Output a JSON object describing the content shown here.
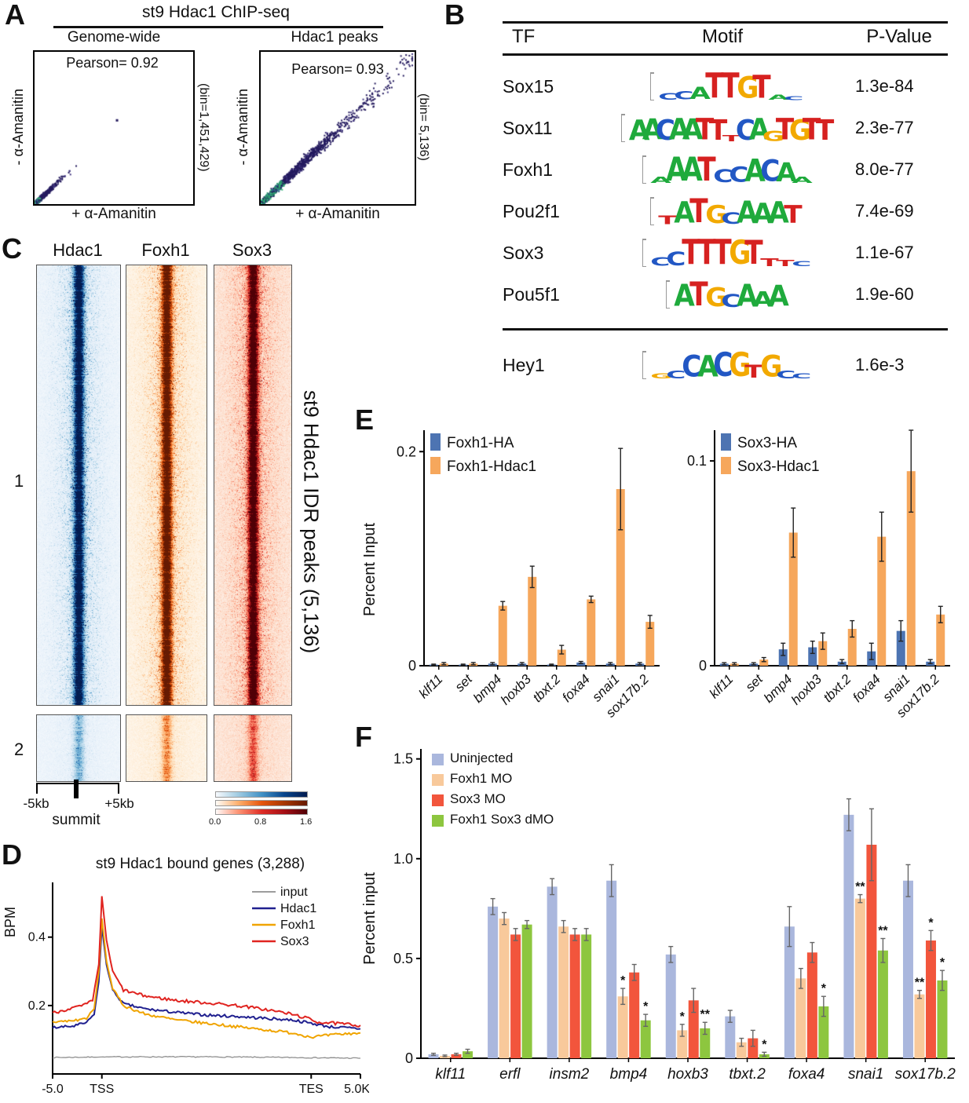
{
  "panelA": {
    "letter": "A",
    "title": "st9 Hdac1 ChIP-seq",
    "plots": [
      {
        "subtitle": "Genome-wide",
        "pearson": "Pearson= 0.92",
        "xlabel": "+ α-Amanitin",
        "ylabel": "- α-Amanitin",
        "bin_label": "(bin=1,451,429)"
      },
      {
        "subtitle": "Hdac1 peaks",
        "pearson": "Pearson= 0.93",
        "xlabel": "+ α-Amanitin",
        "ylabel": "- α-Amanitin",
        "bin_label": "(bin= 5,136)"
      }
    ]
  },
  "panelB": {
    "letter": "B",
    "headers": [
      "TF",
      "Motif",
      "P-Value"
    ],
    "logo_colors": {
      "A": "#1faa3c",
      "C": "#2257c4",
      "G": "#f2a900",
      "T": "#d62120"
    },
    "rows": [
      {
        "tf": "Sox15",
        "pvalue": "1.3e-84",
        "logo": [
          [
            "C",
            0.26
          ],
          [
            "C",
            0.32
          ],
          [
            "A",
            0.48
          ],
          [
            "T",
            1.0
          ],
          [
            "T",
            1.0
          ],
          [
            "G",
            0.85
          ],
          [
            "T",
            0.92
          ],
          [
            "A",
            0.2
          ],
          [
            "C",
            0.15
          ]
        ]
      },
      {
        "tf": "Sox11",
        "pvalue": "2.3e-77",
        "logo": [
          [
            "A",
            0.8
          ],
          [
            "A",
            0.82
          ],
          [
            "C",
            0.8
          ],
          [
            "A",
            0.85
          ],
          [
            "A",
            0.82
          ],
          [
            "T",
            0.85
          ],
          [
            "T",
            0.8
          ],
          [
            "T",
            0.25
          ],
          [
            "C",
            0.8
          ],
          [
            "A",
            0.85
          ],
          [
            "G",
            0.4
          ],
          [
            "T",
            0.85
          ],
          [
            "G",
            0.8
          ],
          [
            "T",
            0.85
          ],
          [
            "T",
            0.8
          ]
        ]
      },
      {
        "tf": "Foxh1",
        "pvalue": "8.0e-77",
        "logo": [
          [
            "A",
            0.25
          ],
          [
            "A",
            0.95
          ],
          [
            "A",
            0.95
          ],
          [
            "T",
            0.95
          ],
          [
            "C",
            0.5
          ],
          [
            "C",
            0.6
          ],
          [
            "A",
            0.9
          ],
          [
            "C",
            0.85
          ],
          [
            "A",
            0.75
          ],
          [
            "A",
            0.25
          ]
        ]
      },
      {
        "tf": "Pou2f1",
        "pvalue": "7.4e-69",
        "logo": [
          [
            "T",
            0.35
          ],
          [
            "A",
            0.85
          ],
          [
            "T",
            0.95
          ],
          [
            "G",
            0.7
          ],
          [
            "C",
            0.45
          ],
          [
            "A",
            0.88
          ],
          [
            "A",
            0.8
          ],
          [
            "A",
            0.85
          ],
          [
            "T",
            0.7
          ]
        ]
      },
      {
        "tf": "Sox3",
        "pvalue": "1.1e-67",
        "logo": [
          [
            "C",
            0.35
          ],
          [
            "C",
            0.55
          ],
          [
            "T",
            1.0
          ],
          [
            "T",
            1.0
          ],
          [
            "T",
            1.0
          ],
          [
            "G",
            0.95
          ],
          [
            "T",
            0.95
          ],
          [
            "T",
            0.3
          ],
          [
            "T",
            0.25
          ],
          [
            "C",
            0.2
          ]
        ]
      },
      {
        "tf": "Pou5f1",
        "pvalue": "1.9e-60",
        "logo": [
          [
            "A",
            0.88
          ],
          [
            "T",
            0.95
          ],
          [
            "G",
            0.75
          ],
          [
            "C",
            0.5
          ],
          [
            "A",
            0.88
          ],
          [
            "A",
            0.6
          ],
          [
            "A",
            0.82
          ]
        ]
      },
      {
        "tf": "Hey1",
        "pvalue": "1.6e-3",
        "below_separator": true,
        "logo": [
          [
            "G",
            0.2
          ],
          [
            "C",
            0.3
          ],
          [
            "C",
            0.85
          ],
          [
            "A",
            0.85
          ],
          [
            "C",
            0.95
          ],
          [
            "G",
            0.95
          ],
          [
            "T",
            0.5
          ],
          [
            "G",
            0.85
          ],
          [
            "C",
            0.3
          ],
          [
            "C",
            0.2
          ]
        ]
      }
    ]
  },
  "panelC": {
    "letter": "C",
    "column_titles": [
      "Hdac1",
      "Foxh1",
      "Sox3"
    ],
    "cluster_labels": [
      "1",
      "2"
    ],
    "x_ticks": {
      "left": "-5kb",
      "center": "summit",
      "right": "+5kb"
    },
    "side_label": "st9 Hdac1 IDR peaks  (5,136)",
    "colorbar_ticks": [
      "0.0",
      "0.8",
      "1.6"
    ]
  },
  "panelD": {
    "letter": "D",
    "title": "st9 Hdac1 bound genes (3,288)",
    "ylabel": "BPM"
  },
  "panelE": {
    "letter": "E",
    "ylabel": "Percent Input"
  },
  "panelF": {
    "letter": "F",
    "ylabel": "Percent input"
  },
  "chart_data": [
    {
      "id": "A_left",
      "type": "scatter",
      "title": "Genome-wide",
      "pearson": 0.92,
      "bins": 1451429,
      "xlabel": "+ α-Amanitin",
      "ylabel": "- α-Amanitin",
      "xlim": [
        0,
        1
      ],
      "ylim": [
        0,
        1
      ],
      "description": "dense cluster of binned coverage points hugging the diagonal near the origin, one isolated mid-range point",
      "render": {
        "seed": 11,
        "n": 1050,
        "scale": 0.034,
        "max": 0.3,
        "spread": 0.05,
        "coreCut": 0.028,
        "outlier": [
          0.52,
          0.55
        ]
      }
    },
    {
      "id": "A_right",
      "type": "scatter",
      "title": "Hdac1 peaks",
      "pearson": 0.93,
      "bins": 5136,
      "xlabel": "+ α-Amanitin",
      "ylabel": "- α-Amanitin",
      "xlim": [
        0,
        1
      ],
      "ylim": [
        0,
        1
      ],
      "description": "diagonal scatter cloud spanning the full range, density-colored (green core, dark navy outliers)",
      "render": {
        "seed": 23,
        "n": 1700,
        "scale": 0.2,
        "max": 0.96,
        "spread": 0.07,
        "coreCut": 0.13
      }
    },
    {
      "id": "C_heat",
      "type": "heatmap",
      "columns": [
        {
          "name": "Hdac1",
          "palette": "blue",
          "base": 0.04,
          "speck": 0.1
        },
        {
          "name": "Foxh1",
          "palette": "orange",
          "base": 0.04,
          "speck": 0.12
        },
        {
          "name": "Sox3",
          "palette": "red",
          "base": 0.08,
          "speck": 0.16
        }
      ],
      "clusters": [
        {
          "label": "1",
          "strength": 1.0
        },
        {
          "label": "2",
          "strength": 0.42
        }
      ],
      "x_range": [
        "-5kb",
        "summit",
        "+5kb"
      ],
      "colorbar": [
        0.0,
        0.8,
        1.6
      ],
      "side_label": "st9 Hdac1 IDR peaks  (5,136)"
    },
    {
      "id": "D_meta",
      "type": "line",
      "title": "st9 Hdac1 bound genes (3,288)",
      "ylabel": "BPM",
      "ylim": [
        0,
        0.56
      ],
      "yticks": [
        {
          "v": 0.2,
          "label": "0.2"
        },
        {
          "v": 0.4,
          "label": "0.4"
        }
      ],
      "xticks": [
        {
          "pos": 0,
          "label": "-5.0"
        },
        {
          "pos": 0.16,
          "label": "TSS"
        },
        {
          "pos": 0.84,
          "label": "TES"
        },
        {
          "pos": 1,
          "label": "5.0Kb"
        }
      ],
      "series": [
        {
          "name": "input",
          "color": "#8f8f8f",
          "width": 1.3,
          "noise": 0.003,
          "points": [
            [
              0,
              0.048
            ],
            [
              0.2,
              0.05
            ],
            [
              0.5,
              0.05
            ],
            [
              0.8,
              0.048
            ],
            [
              1,
              0.046
            ]
          ]
        },
        {
          "name": "Hdac1",
          "color": "#20208f",
          "width": 2,
          "noise": 0.008,
          "points": [
            [
              0,
              0.135
            ],
            [
              0.07,
              0.14
            ],
            [
              0.11,
              0.15
            ],
            [
              0.135,
              0.175
            ],
            [
              0.15,
              0.27
            ],
            [
              0.16,
              0.43
            ],
            [
              0.175,
              0.32
            ],
            [
              0.195,
              0.245
            ],
            [
              0.23,
              0.205
            ],
            [
              0.3,
              0.19
            ],
            [
              0.4,
              0.18
            ],
            [
              0.5,
              0.172
            ],
            [
              0.6,
              0.168
            ],
            [
              0.7,
              0.162
            ],
            [
              0.78,
              0.158
            ],
            [
              0.84,
              0.148
            ],
            [
              0.9,
              0.138
            ],
            [
              1,
              0.132
            ]
          ]
        },
        {
          "name": "Foxh1",
          "color": "#f0a400",
          "width": 2,
          "noise": 0.008,
          "points": [
            [
              0,
              0.152
            ],
            [
              0.07,
              0.156
            ],
            [
              0.11,
              0.163
            ],
            [
              0.135,
              0.19
            ],
            [
              0.15,
              0.3
            ],
            [
              0.16,
              0.455
            ],
            [
              0.175,
              0.33
            ],
            [
              0.195,
              0.25
            ],
            [
              0.23,
              0.2
            ],
            [
              0.3,
              0.175
            ],
            [
              0.4,
              0.158
            ],
            [
              0.5,
              0.148
            ],
            [
              0.6,
              0.138
            ],
            [
              0.7,
              0.128
            ],
            [
              0.78,
              0.12
            ],
            [
              0.84,
              0.108
            ],
            [
              0.92,
              0.115
            ],
            [
              1,
              0.12
            ]
          ]
        },
        {
          "name": "Sox3",
          "color": "#e02420",
          "width": 2,
          "noise": 0.009,
          "points": [
            [
              0,
              0.178
            ],
            [
              0.05,
              0.19
            ],
            [
              0.1,
              0.2
            ],
            [
              0.13,
              0.215
            ],
            [
              0.15,
              0.32
            ],
            [
              0.16,
              0.52
            ],
            [
              0.175,
              0.39
            ],
            [
              0.195,
              0.3
            ],
            [
              0.23,
              0.245
            ],
            [
              0.3,
              0.228
            ],
            [
              0.4,
              0.215
            ],
            [
              0.5,
              0.208
            ],
            [
              0.6,
              0.2
            ],
            [
              0.68,
              0.19
            ],
            [
              0.76,
              0.178
            ],
            [
              0.82,
              0.165
            ],
            [
              0.86,
              0.152
            ],
            [
              0.93,
              0.147
            ],
            [
              1,
              0.142
            ]
          ]
        }
      ]
    },
    {
      "id": "E_left",
      "type": "bar",
      "ylabel": "Percent Input",
      "ylim": [
        0,
        0.22
      ],
      "yticks": [
        {
          "v": 0,
          "label": "0"
        },
        {
          "v": 0.2,
          "label": "0.2"
        }
      ],
      "categories": [
        "klf11",
        "set",
        "bmp4",
        "hoxb3",
        "tbxt.2",
        "foxa4",
        "snai1",
        "sox17b.2"
      ],
      "series": [
        {
          "name": "Foxh1-HA",
          "color": "#4d74b2",
          "values": [
            0.001,
            0.001,
            0.002,
            0.002,
            0.001,
            0.003,
            0.002,
            0.002
          ],
          "errors": [
            0.0005,
            0.0005,
            0.001,
            0.001,
            0.0005,
            0.001,
            0.001,
            0.001
          ]
        },
        {
          "name": "Foxh1-Hdac1",
          "color": "#f6a75c",
          "values": [
            0.002,
            0.002,
            0.056,
            0.083,
            0.015,
            0.062,
            0.165,
            0.041
          ],
          "errors": [
            0.001,
            0.001,
            0.004,
            0.01,
            0.004,
            0.003,
            0.038,
            0.006
          ]
        }
      ]
    },
    {
      "id": "E_right",
      "type": "bar",
      "ylabel": "",
      "ylim": [
        0,
        0.115
      ],
      "yticks": [
        {
          "v": 0,
          "label": "0"
        },
        {
          "v": 0.1,
          "label": "0.1"
        }
      ],
      "categories": [
        "klf11",
        "set",
        "bmp4",
        "hoxb3",
        "tbxt.2",
        "foxa4",
        "snai1",
        "sox17b.2"
      ],
      "series": [
        {
          "name": "Sox3-HA",
          "color": "#4d74b2",
          "values": [
            0.001,
            0.001,
            0.008,
            0.009,
            0.002,
            0.007,
            0.017,
            0.002
          ],
          "errors": [
            0.0005,
            0.0005,
            0.003,
            0.003,
            0.001,
            0.004,
            0.005,
            0.001
          ]
        },
        {
          "name": "Sox3-Hdac1",
          "color": "#f6a75c",
          "values": [
            0.001,
            0.003,
            0.065,
            0.012,
            0.018,
            0.063,
            0.095,
            0.025
          ],
          "errors": [
            0.0005,
            0.001,
            0.012,
            0.004,
            0.004,
            0.012,
            0.02,
            0.004
          ]
        }
      ]
    },
    {
      "id": "F_main",
      "type": "bar",
      "ylabel": "Percent input",
      "ylim": [
        0,
        1.55
      ],
      "yticks": [
        {
          "v": 0,
          "label": "0"
        },
        {
          "v": 0.5,
          "label": "0.5"
        },
        {
          "v": 1.0,
          "label": "1.0"
        },
        {
          "v": 1.5,
          "label": "1.5"
        }
      ],
      "categories": [
        "klf11",
        "erfl",
        "insm2",
        "bmp4",
        "hoxb3",
        "tbxt.2",
        "foxa4",
        "snai1",
        "sox17b.2"
      ],
      "series": [
        {
          "name": "Uninjected",
          "color": "#aab7dd",
          "values": [
            0.02,
            0.76,
            0.86,
            0.89,
            0.52,
            0.21,
            0.66,
            1.22,
            0.89
          ],
          "errors": [
            0.005,
            0.04,
            0.04,
            0.08,
            0.04,
            0.03,
            0.1,
            0.08,
            0.08
          ],
          "sig": [
            "",
            "",
            "",
            "",
            "",
            "",
            "",
            "",
            ""
          ]
        },
        {
          "name": "Foxh1 MO",
          "color": "#f8c99b",
          "values": [
            0.012,
            0.7,
            0.66,
            0.31,
            0.14,
            0.08,
            0.4,
            0.8,
            0.32
          ],
          "errors": [
            0.004,
            0.03,
            0.03,
            0.04,
            0.03,
            0.02,
            0.05,
            0.02,
            0.02
          ],
          "sig": [
            "",
            "",
            "",
            "*",
            "*",
            "",
            "",
            "**",
            "**"
          ]
        },
        {
          "name": "Sox3 MO",
          "color": "#f2553c",
          "values": [
            0.02,
            0.62,
            0.62,
            0.43,
            0.29,
            0.1,
            0.53,
            1.07,
            0.59
          ],
          "errors": [
            0.005,
            0.03,
            0.03,
            0.04,
            0.06,
            0.04,
            0.05,
            0.18,
            0.05
          ],
          "sig": [
            "",
            "",
            "",
            "",
            "",
            "",
            "",
            "",
            "*"
          ]
        },
        {
          "name": "Foxh1 Sox3 dMO",
          "color": "#8dc63f",
          "values": [
            0.035,
            0.67,
            0.62,
            0.19,
            0.15,
            0.02,
            0.26,
            0.54,
            0.39
          ],
          "errors": [
            0.01,
            0.02,
            0.03,
            0.03,
            0.03,
            0.01,
            0.05,
            0.06,
            0.05
          ],
          "sig": [
            "",
            "",
            "",
            "*",
            "**",
            "*",
            "*",
            "**",
            "*"
          ]
        }
      ]
    }
  ]
}
